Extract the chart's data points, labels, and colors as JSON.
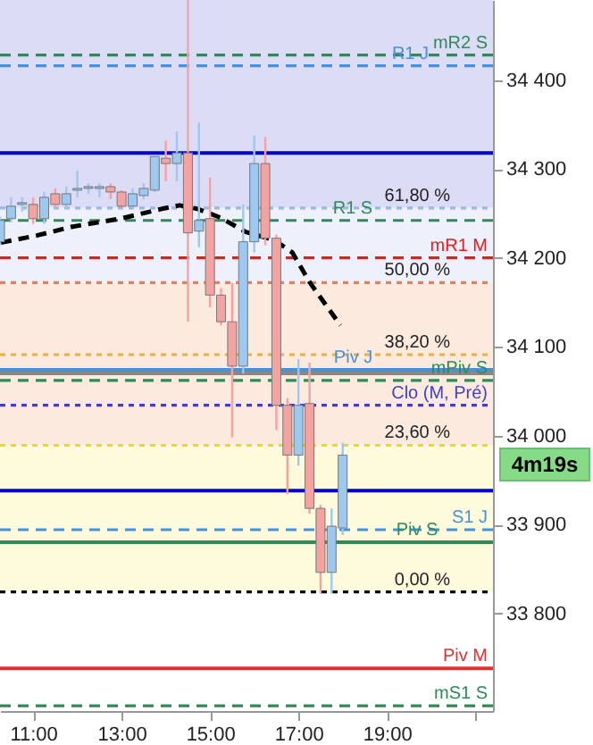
{
  "chart_data": {
    "type": "candlestick",
    "x": [
      10.25,
      10.5,
      10.75,
      11,
      11.25,
      11.5,
      11.75,
      12,
      12.25,
      12.5,
      12.75,
      13,
      13.25,
      13.5,
      13.75,
      14,
      14.25,
      14.5,
      14.75,
      15,
      15.25,
      15.5,
      15.75,
      16,
      16.25,
      16.5,
      16.75,
      17,
      17.25,
      17.5,
      17.75,
      18
    ],
    "ohlc": [
      [
        34218,
        34246,
        34214,
        34242
      ],
      [
        34244,
        34268,
        34240,
        34258
      ],
      [
        34260,
        34268,
        34252,
        34262
      ],
      [
        34260,
        34268,
        34238,
        34244
      ],
      [
        34244,
        34274,
        34238,
        34268
      ],
      [
        34272,
        34278,
        34256,
        34260
      ],
      [
        34260,
        34280,
        34256,
        34272
      ],
      [
        34276,
        34298,
        34268,
        34278
      ],
      [
        34278,
        34284,
        34272,
        34280
      ],
      [
        34278,
        34284,
        34268,
        34280
      ],
      [
        34280,
        34284,
        34266,
        34274
      ],
      [
        34274,
        34276,
        34256,
        34258
      ],
      [
        34258,
        34278,
        34256,
        34272
      ],
      [
        34270,
        34284,
        34266,
        34278
      ],
      [
        34276,
        34316,
        34274,
        34314
      ],
      [
        34312,
        34332,
        34286,
        34306
      ],
      [
        34306,
        34342,
        34286,
        34318
      ],
      [
        34318,
        34490,
        34128,
        34228
      ],
      [
        34230,
        34352,
        34212,
        34242
      ],
      [
        34244,
        34290,
        34144,
        34158
      ],
      [
        34158,
        34166,
        34124,
        34128
      ],
      [
        34128,
        34172,
        33998,
        34078
      ],
      [
        34078,
        34260,
        34070,
        34218
      ],
      [
        34218,
        34338,
        34206,
        34306
      ],
      [
        34306,
        34336,
        34214,
        34222
      ],
      [
        34222,
        34226,
        34006,
        34034
      ],
      [
        34034,
        34042,
        33934,
        33978
      ],
      [
        33978,
        34086,
        33966,
        34034
      ],
      [
        34036,
        34082,
        33912,
        33918
      ],
      [
        33918,
        33922,
        33822,
        33846
      ],
      [
        33846,
        33918,
        33822,
        33898
      ],
      [
        33896,
        33992,
        33888,
        33978
      ]
    ],
    "colors": [
      "#9dc8f0",
      "#9dc8f0",
      "#9dc8f0",
      "#f4a3a3",
      "#9dc8f0",
      "#f4a3a3",
      "#9dc8f0",
      "#9dc8f0",
      "#9dc8f0",
      "#9dc8f0",
      "#f4a3a3",
      "#f4a3a3",
      "#9dc8f0",
      "#9dc8f0",
      "#9dc8f0",
      "#f4a3a3",
      "#9dc8f0",
      "#f4a3a3",
      "#9dc8f0",
      "#f4a3a3",
      "#f4a3a3",
      "#f4a3a3",
      "#9dc8f0",
      "#9dc8f0",
      "#f4a3a3",
      "#f4a3a3",
      "#f4a3a3",
      "#9dc8f0",
      "#f4a3a3",
      "#f4a3a3",
      "#9dc8f0",
      "#9dc8f0"
    ],
    "series": [
      {
        "type": "line",
        "color": "#000000",
        "x": [
          10.27,
          11.08,
          11.89,
          12.97,
          13.91,
          14.31,
          14.72,
          15.24,
          15.81,
          16.45,
          16.86,
          17.26,
          17.95
        ],
        "values": [
          34217,
          34225,
          34235,
          34244,
          34255,
          34259,
          34255,
          34245,
          34229,
          34220,
          34206,
          34172,
          34124
        ]
      }
    ],
    "line_style": "dashed",
    "xlim": [
      10.25,
      21.4
    ],
    "xticks": [
      {
        "value": 11,
        "label": "11:00"
      },
      {
        "value": 13,
        "label": "13:00"
      },
      {
        "value": 15,
        "label": "15:00"
      },
      {
        "value": 17,
        "label": "17:00"
      },
      {
        "value": 19,
        "label": "19:00"
      },
      {
        "value": 21,
        "label": null
      }
    ],
    "ylim": [
      33690,
      34490
    ],
    "yticks": [
      {
        "value": 33800,
        "label": "33 800"
      },
      {
        "value": 33900,
        "label": "33 900"
      },
      {
        "value": 34000,
        "label": "34 000"
      },
      {
        "value": 34100,
        "label": "34 100"
      },
      {
        "value": 34200,
        "label": "34 200"
      },
      {
        "value": 34300,
        "label": "34 300"
      },
      {
        "value": 34400,
        "label": "34 400"
      }
    ],
    "grid": false,
    "bands": [
      {
        "axis": "y",
        "from": 34256,
        "to": 34490,
        "color": "#dcdcf7"
      },
      {
        "axis": "y",
        "from": 34172,
        "to": 34256,
        "color": "#eef0fb"
      },
      {
        "axis": "y",
        "from": 33989,
        "to": 34172,
        "color": "#fdeadf"
      },
      {
        "axis": "y",
        "from": 33824,
        "to": 33989,
        "color": "#fdfbdc"
      }
    ],
    "ref_lines": [
      {
        "axis": "y",
        "value": 34428,
        "label": "mR2 S",
        "color": "#2e8b57",
        "line_style": "dashed"
      },
      {
        "axis": "y",
        "value": 34416,
        "label": "R1 J",
        "color": "#4a90d9",
        "line_style": "dashed"
      },
      {
        "axis": "y",
        "value": 34318,
        "color": "#0000cc",
        "line_style": "solid"
      },
      {
        "axis": "y",
        "value": 34256,
        "color": "#9ab8e0",
        "line_style": "dotted"
      },
      {
        "axis": "y",
        "value": 34242,
        "label": "R1 S",
        "color": "#2e8b57",
        "line_style": "dashed"
      },
      {
        "axis": "y",
        "value": 34200,
        "label": "mR1 M",
        "color": "#e02020",
        "line_style": "dashed"
      },
      {
        "axis": "y",
        "value": 34172,
        "color": "#e08060",
        "line_style": "dotted"
      },
      {
        "axis": "y",
        "value": 34091,
        "color": "#e8b040",
        "line_style": "dotted"
      },
      {
        "axis": "y",
        "value": 34074,
        "label": "Piv J",
        "color": "#4a90d9",
        "line_style": "solid"
      },
      {
        "axis": "y",
        "value": 34070,
        "color": "#888888",
        "line_style": "solid"
      },
      {
        "axis": "y",
        "value": 34062,
        "label": "mPiv S",
        "color": "#2e8b57",
        "line_style": "dashed"
      },
      {
        "axis": "y",
        "value": 34034,
        "label": "Clo (M, Pré)",
        "color": "#4040c0",
        "line_style": "dotted"
      },
      {
        "axis": "y",
        "value": 33989,
        "color": "#e8e000",
        "line_style": "dotted"
      },
      {
        "axis": "y",
        "value": 33938,
        "color": "#0000cc",
        "line_style": "solid"
      },
      {
        "axis": "y",
        "value": 33894,
        "label": "S1 J",
        "color": "#4a90d9",
        "line_style": "dashed"
      },
      {
        "axis": "y",
        "value": 33880,
        "label": "Piv S",
        "color": "#2e8b57",
        "line_style": "solid"
      },
      {
        "axis": "y",
        "value": 33824,
        "color": "#000000",
        "line_style": "dotted"
      },
      {
        "axis": "y",
        "value": 33738,
        "label": "Piv M",
        "color": "#e03030",
        "line_style": "solid"
      },
      {
        "axis": "y",
        "value": 33696,
        "label": "mS1 S",
        "color": "#2e8b57",
        "line_style": "dashed"
      }
    ],
    "annotations": [
      {
        "text": "61,80 %",
        "y": 34256
      },
      {
        "text": "50,00 %",
        "y": 34172
      },
      {
        "text": "38,20 %",
        "y": 34091
      },
      {
        "text": "23,60 %",
        "y": 33989
      },
      {
        "text": "0,00 %",
        "y": 33824
      },
      "4m19s"
    ]
  }
}
